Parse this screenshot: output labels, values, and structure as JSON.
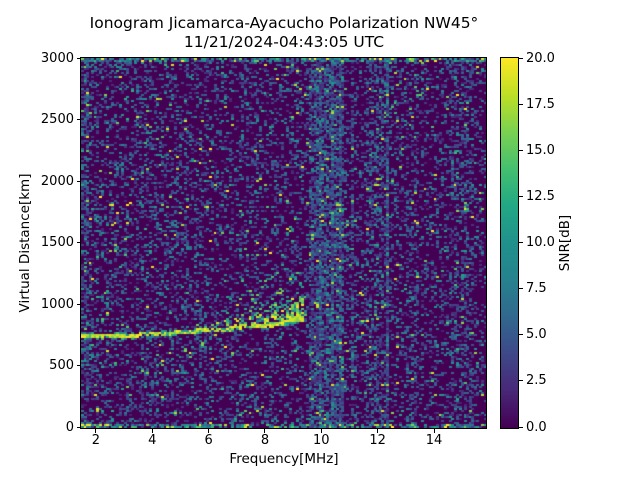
{
  "chart_data": {
    "type": "heatmap",
    "title": "Ionogram Jicamarca-Ayacucho Polarization NW45°",
    "subtitle": "11/21/2024-04:43:05 UTC",
    "xlabel": "Frequency[MHz]",
    "ylabel": "Virtual Distance[km]",
    "colorbar_label": "SNR[dB]",
    "xlim": [
      1.47,
      15.81
    ],
    "ylim": [
      0,
      3000
    ],
    "clim": [
      0,
      20
    ],
    "grid": false,
    "legend": "colorbar-right",
    "x_ticks": [
      {
        "v": 2,
        "label": "2"
      },
      {
        "v": 4,
        "label": "4"
      },
      {
        "v": 6,
        "label": "6"
      },
      {
        "v": 8,
        "label": "8"
      },
      {
        "v": 10,
        "label": "10"
      },
      {
        "v": 12,
        "label": "12"
      },
      {
        "v": 14,
        "label": "14"
      }
    ],
    "y_ticks": [
      {
        "v": 0,
        "label": "0"
      },
      {
        "v": 500,
        "label": "500"
      },
      {
        "v": 1000,
        "label": "1000"
      },
      {
        "v": 1500,
        "label": "1500"
      },
      {
        "v": 2000,
        "label": "2000"
      },
      {
        "v": 2500,
        "label": "2500"
      },
      {
        "v": 3000,
        "label": "3000"
      }
    ],
    "colorbar_ticks": [
      {
        "v": 0,
        "label": "0.0"
      },
      {
        "v": 2.5,
        "label": "2.5"
      },
      {
        "v": 5,
        "label": "5.0"
      },
      {
        "v": 7.5,
        "label": "7.5"
      },
      {
        "v": 10,
        "label": "10.0"
      },
      {
        "v": 12.5,
        "label": "12.5"
      },
      {
        "v": 15,
        "label": "15.0"
      },
      {
        "v": 17.5,
        "label": "17.5"
      },
      {
        "v": 20,
        "label": "20.0"
      }
    ],
    "colormap": {
      "name": "viridis",
      "stops": [
        "#440154",
        "#482878",
        "#3e4989",
        "#31688e",
        "#26828e",
        "#21918c",
        "#22a884",
        "#44bf70",
        "#7ad151",
        "#bddf26",
        "#fde725"
      ]
    },
    "noise": {
      "seed": 42,
      "base_density": 0.26,
      "low_freq_gain": 1.2,
      "left_edge_mhz": 0.25,
      "left_edge_gain": 2.0,
      "edge_km": 25,
      "edge_gain": 2.4,
      "edge_value_boost": 1.8
    },
    "interference_bands": [
      {
        "f0": 9.55,
        "f1": 10.8,
        "gain": 2.6
      },
      {
        "f0": 9.86,
        "f1": 9.98,
        "gain": 8.0
      },
      {
        "f0": 10.28,
        "f1": 10.4,
        "gain": 8.0
      },
      {
        "f0": 10.6,
        "f1": 10.72,
        "gain": 5.0
      },
      {
        "f0": 11.05,
        "f1": 11.15,
        "gain": 2.5
      },
      {
        "f0": 11.6,
        "f1": 12.35,
        "gain": 1.8
      },
      {
        "f0": 12.24,
        "f1": 12.34,
        "gain": 4.0
      },
      {
        "f0": 13.0,
        "f1": 13.45,
        "gain": 1.4
      },
      {
        "f0": 14.55,
        "f1": 15.35,
        "gain": 1.6
      }
    ],
    "echo_trace": {
      "f_start_mhz": 1.47,
      "f_max_mhz": 9.35,
      "half_width_km": 16,
      "fringe_km": 30,
      "snr_range": [
        16,
        20
      ],
      "points": [
        [
          1.47,
          743
        ],
        [
          2.5,
          750
        ],
        [
          4.0,
          762
        ],
        [
          5.0,
          772
        ],
        [
          6.0,
          788
        ],
        [
          6.8,
          800
        ],
        [
          7.5,
          815
        ],
        [
          8.2,
          835
        ],
        [
          8.8,
          855
        ],
        [
          9.35,
          880
        ]
      ],
      "gaps": [
        [
          7.27,
          7.44
        ]
      ]
    },
    "spread_f": {
      "f_min_mhz": 5.3,
      "f_dense_mhz": 8.4,
      "f_max_mhz": 9.35,
      "offset_km": 14,
      "height0_km": 30,
      "height_growth_km_per_mhz": 65,
      "max_density": 0.8,
      "snr_range": [
        9,
        20
      ]
    }
  }
}
